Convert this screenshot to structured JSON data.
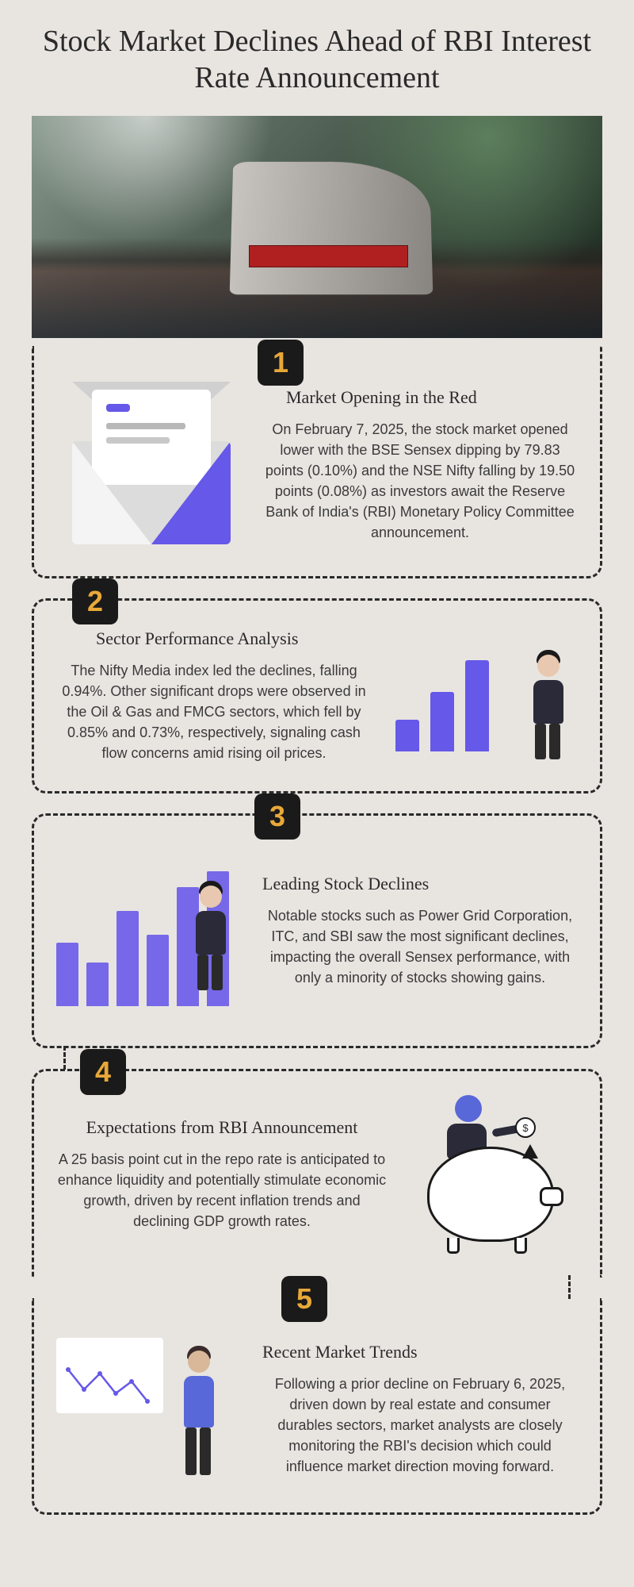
{
  "title": "Stock Market Declines Ahead of RBI Interest Rate Announcement",
  "accent_color": "#6658e8",
  "badge_bg": "#1a1a1a",
  "badge_fg": "#e8a838",
  "sections": [
    {
      "num": "1",
      "heading": "Market Opening in the Red",
      "body": "On February 7, 2025, the stock market opened lower with the BSE Sensex dipping by 79.83 points (0.10%) and the NSE Nifty falling by 19.50 points (0.08%) as investors await the Reserve Bank of India's (RBI) Monetary Policy Committee announcement."
    },
    {
      "num": "2",
      "heading": "Sector Performance Analysis",
      "body": "The Nifty Media index led the declines, falling 0.94%. Other significant drops were observed in the Oil & Gas and FMCG sectors, which fell by 0.85% and 0.73%, respectively, signaling cash flow concerns amid rising oil prices."
    },
    {
      "num": "3",
      "heading": "Leading Stock Declines",
      "body": "Notable stocks such as Power Grid Corporation, ITC, and SBI saw the most significant declines, impacting the overall Sensex performance, with only a minority of stocks showing gains."
    },
    {
      "num": "4",
      "heading": "Expectations from RBI Announcement",
      "body": "A 25 basis point cut in the repo rate is anticipated to enhance liquidity and potentially stimulate economic growth, driven by recent inflation trends and declining GDP growth rates."
    },
    {
      "num": "5",
      "heading": "Recent Market Trends",
      "body": "Following a prior decline on February 6, 2025, driven down by real estate and consumer durables sectors, market analysts are closely monitoring the RBI's decision which could influence market direction moving forward."
    }
  ],
  "charts": {
    "section2_bars": [
      40,
      75,
      115
    ],
    "section3_bars": [
      80,
      55,
      120,
      90,
      150,
      170
    ],
    "section5_line_points": "5,30 25,55 45,35 65,60 85,45 105,70"
  }
}
